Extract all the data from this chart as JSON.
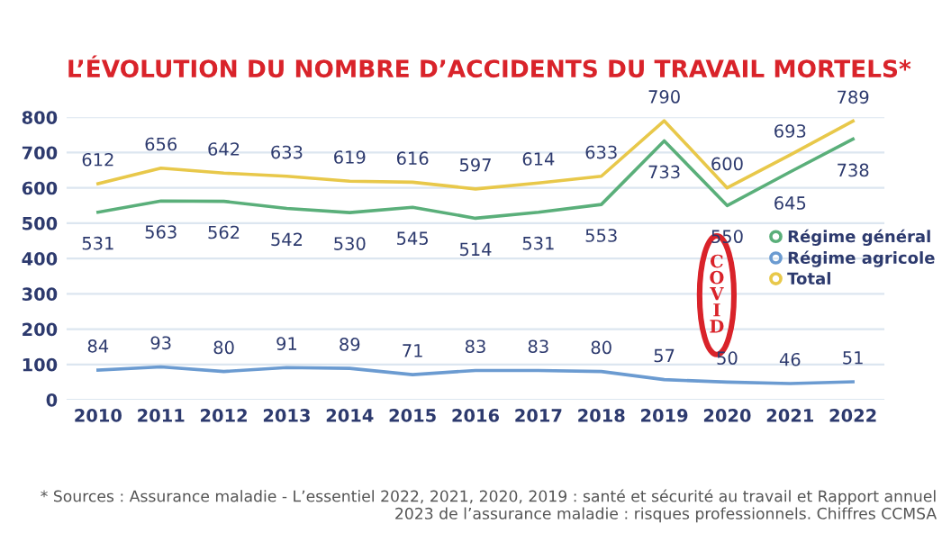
{
  "chart_data": {
    "type": "line",
    "title": "L’ÉVOLUTION DU NOMBRE D’ACCIDENTS DU TRAVAIL MORTELS*",
    "categories": [
      "2010",
      "2011",
      "2012",
      "2013",
      "2014",
      "2015",
      "2016",
      "2017",
      "2018",
      "2019",
      "2020",
      "2021",
      "2022"
    ],
    "series": [
      {
        "name": "Régime général",
        "color": "#5aaf7a",
        "values": [
          531,
          563,
          562,
          542,
          530,
          545,
          514,
          531,
          553,
          733,
          550,
          645,
          738
        ]
      },
      {
        "name": "Régime agricole",
        "color": "#6b9bd1",
        "values": [
          84,
          93,
          80,
          91,
          89,
          71,
          83,
          83,
          80,
          57,
          50,
          46,
          51
        ]
      },
      {
        "name": "Total",
        "color": "#e8c84a",
        "values": [
          612,
          656,
          642,
          633,
          619,
          616,
          597,
          614,
          633,
          790,
          600,
          693,
          789
        ]
      }
    ],
    "ylim": [
      0,
      800
    ],
    "yticks": [
      0,
      100,
      200,
      300,
      400,
      500,
      600,
      700,
      800
    ],
    "grid": "y",
    "legend": "right",
    "marker": "none",
    "line_style": "solid",
    "data_labels": true,
    "annotations": [
      "COVID",
      "* Sources : Assurance maladie - L’essentiel 2022, 2021, 2020, 2019 : santé et sécurité au travail et Rapport annuel 2023 de l’assurance maladie : risques professionnels. Chiffres CCMSA"
    ]
  }
}
